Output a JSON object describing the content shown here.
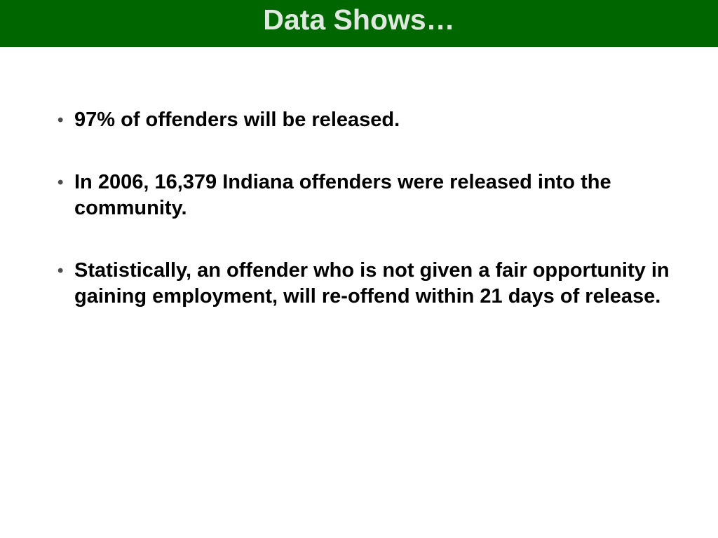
{
  "slide": {
    "title": "Data Shows…",
    "bullet_symbol": "•",
    "bullets": [
      {
        "text": "97% of offenders will be released."
      },
      {
        "text": "In 2006, 16,379 Indiana offenders were released into the community."
      },
      {
        "text": "Statistically, an offender who is not given a fair opportunity in gaining employment, will re-offend within 21 days of release."
      }
    ]
  },
  "colors": {
    "title_bar": "#006600",
    "title_text": "#dfe9df",
    "body_text": "#000000",
    "background": "#ffffff"
  }
}
